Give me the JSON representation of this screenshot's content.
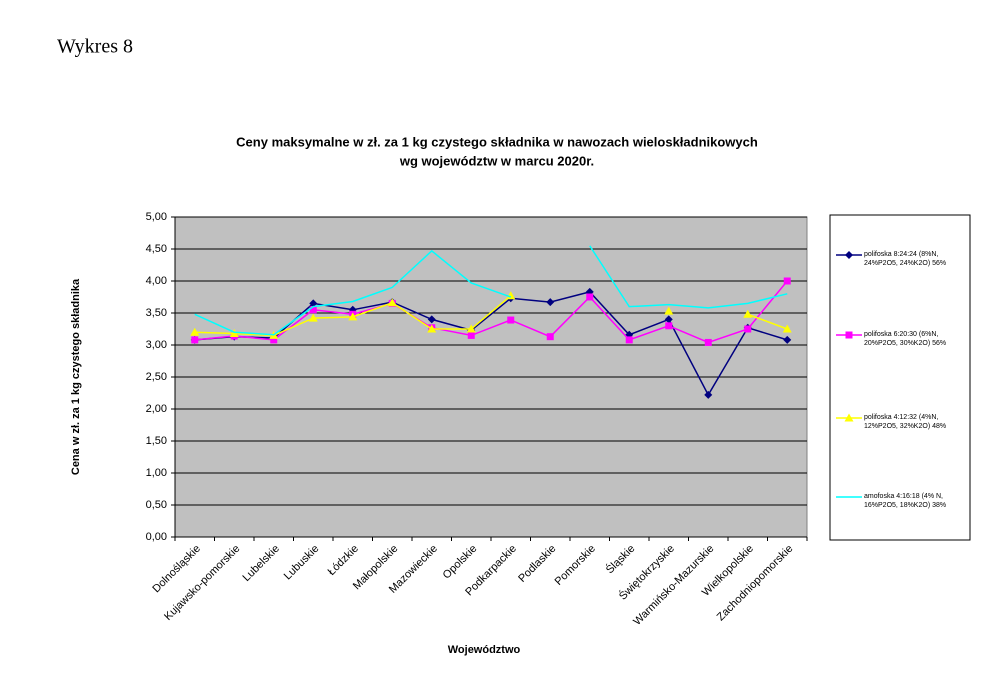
{
  "heading": "Wykres 8",
  "chart_data": {
    "type": "line",
    "title": [
      "Ceny maksymalne  w zł. za 1 kg czystego składnika w nawozach wieloskładnikowych",
      "wg województw w marcu  2020r."
    ],
    "x_label": "Województwo",
    "y_label": "Cena w zł. za 1 kg czystego składnika",
    "categories": [
      "Dolnośląskie",
      "Kujawsko-pomorskie",
      "Lubelskie",
      "Lubuskie",
      "Łódzkie",
      "Małopolskie",
      "Mazowieckie",
      "Opolskie",
      "Podkarpackie",
      "Podlaskie",
      "Pomorskie",
      "Śląskie",
      "Świętokrzyskie",
      "Warmińsko-Mazurskie",
      "Wielkopolskie",
      "Zachodniopomorskie"
    ],
    "series": [
      {
        "name": "polifoska 8:24:24 (8%N, 24%P2O5, 24%K2O) 56%",
        "color": "#000080",
        "marker": "diamond",
        "values": [
          3.08,
          3.13,
          3.11,
          3.65,
          3.55,
          3.67,
          3.4,
          3.23,
          3.73,
          3.67,
          3.83,
          3.16,
          3.4,
          2.22,
          3.27,
          3.08
        ]
      },
      {
        "name": "polifoska 6:20:30 (6%N, 20%P2O5, 30%K2O) 56%",
        "color": "#ff00ff",
        "marker": "square",
        "values": [
          3.08,
          3.14,
          3.08,
          3.55,
          3.48,
          3.65,
          3.27,
          3.15,
          3.39,
          3.13,
          3.75,
          3.08,
          3.3,
          3.04,
          3.25,
          4.0
        ]
      },
      {
        "name": "polifoska 4:12:32 (4%N, 12%P2O5, 32%K2O) 48%",
        "color": "#ffff00",
        "marker": "triangle",
        "values": [
          3.2,
          3.18,
          3.15,
          3.42,
          3.44,
          3.66,
          3.25,
          3.25,
          3.77,
          null,
          null,
          null,
          3.53,
          null,
          3.48,
          3.25
        ]
      },
      {
        "name": "amofoska 4:16:18 (4% N, 16%P2O5, 18%K2O) 38%",
        "color": "#00ffff",
        "marker": "none",
        "values": [
          3.48,
          3.2,
          3.16,
          3.6,
          3.68,
          3.9,
          4.47,
          3.97,
          3.75,
          null,
          4.55,
          3.6,
          3.63,
          3.58,
          3.65,
          3.8
        ]
      }
    ],
    "ylim": [
      0,
      5
    ],
    "yticks": [
      {
        "value": 0,
        "label": "0,00"
      },
      {
        "value": 0.5,
        "label": "0,50"
      },
      {
        "value": 1,
        "label": "1,00"
      },
      {
        "value": 1.5,
        "label": "1,50"
      },
      {
        "value": 2,
        "label": "2,00"
      },
      {
        "value": 2.5,
        "label": "2,50"
      },
      {
        "value": 3,
        "label": "3,00"
      },
      {
        "value": 3.5,
        "label": "3,50"
      },
      {
        "value": 4,
        "label": "4,00"
      },
      {
        "value": 4.5,
        "label": "4,50"
      },
      {
        "value": 5,
        "label": "5,00"
      }
    ],
    "grid": true,
    "plot_background": "#c0c0c0",
    "legend": "right"
  }
}
